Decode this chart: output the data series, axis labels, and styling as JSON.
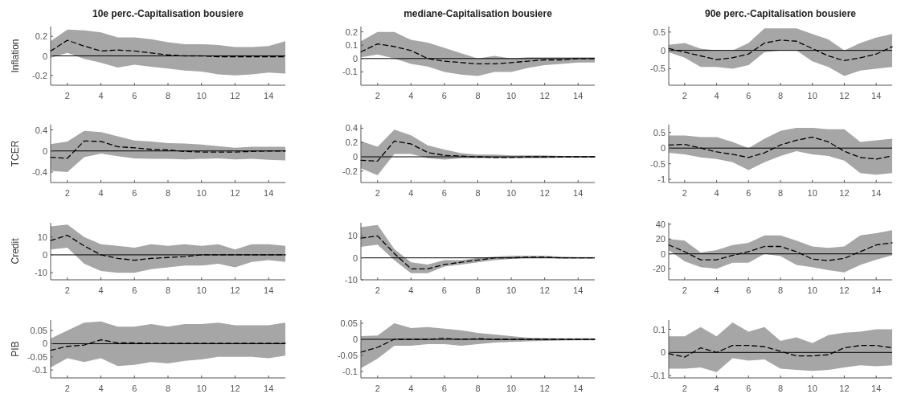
{
  "chart_data": [
    {
      "type": "line",
      "title": "10e perc.-Capitalisation bousiere",
      "ylabel": "Inflation",
      "x": [
        1,
        2,
        3,
        4,
        5,
        6,
        7,
        8,
        9,
        10,
        11,
        12,
        13,
        14,
        15
      ],
      "xlim": [
        1,
        15
      ],
      "xticks": [
        2,
        4,
        6,
        8,
        10,
        12,
        14
      ],
      "ylim": [
        -0.3,
        0.3
      ],
      "yticks": [
        -0.2,
        0,
        0.2
      ],
      "line_style": "dashed",
      "ref_lines": [
        {
          "axis": "y",
          "value": 0,
          "color": "#000000"
        }
      ],
      "series": [
        {
          "color": "#000000",
          "values": [
            0.05,
            0.16,
            0.1,
            0.05,
            0.06,
            0.05,
            0.03,
            0.01,
            0.0,
            0.0,
            -0.01,
            -0.01,
            -0.01,
            -0.01,
            -0.01
          ],
          "lower": [
            -0.02,
            0.03,
            -0.03,
            -0.07,
            -0.12,
            -0.09,
            -0.11,
            -0.13,
            -0.15,
            -0.16,
            -0.19,
            -0.2,
            -0.19,
            -0.17,
            -0.18
          ],
          "upper": [
            0.15,
            0.27,
            0.26,
            0.24,
            0.19,
            0.19,
            0.17,
            0.14,
            0.12,
            0.12,
            0.11,
            0.09,
            0.09,
            0.1,
            0.15
          ]
        }
      ]
    },
    {
      "type": "line",
      "title": "mediane-Capitalisation bousiere",
      "x": [
        1,
        2,
        3,
        4,
        5,
        6,
        7,
        8,
        9,
        10,
        11,
        12,
        13,
        14,
        15
      ],
      "xlim": [
        1,
        15
      ],
      "xticks": [
        2,
        4,
        6,
        8,
        10,
        12,
        14
      ],
      "ylim": [
        -0.2,
        0.24
      ],
      "yticks": [
        -0.1,
        0,
        0.1,
        0.2
      ],
      "line_style": "dashed",
      "ref_lines": [
        {
          "axis": "y",
          "value": 0,
          "color": "#000000"
        }
      ],
      "series": [
        {
          "color": "#000000",
          "values": [
            0.05,
            0.11,
            0.09,
            0.06,
            0.0,
            -0.02,
            -0.03,
            -0.04,
            -0.04,
            -0.03,
            -0.02,
            -0.01,
            -0.01,
            0,
            0
          ],
          "lower": [
            0.01,
            0.03,
            0.0,
            -0.04,
            -0.06,
            -0.1,
            -0.12,
            -0.13,
            -0.1,
            -0.1,
            -0.07,
            -0.05,
            -0.04,
            -0.03,
            -0.03
          ],
          "upper": [
            0.13,
            0.2,
            0.2,
            0.14,
            0.12,
            0.08,
            0.04,
            0.0,
            0.02,
            0.0,
            0.01,
            0.01,
            0.01,
            0.01,
            0.01
          ]
        }
      ]
    },
    {
      "type": "line",
      "title": "90e perc.-Capitalisation bousiere",
      "x": [
        1,
        2,
        3,
        4,
        5,
        6,
        7,
        8,
        9,
        10,
        11,
        12,
        13,
        14,
        15
      ],
      "xlim": [
        1,
        15
      ],
      "xticks": [
        2,
        4,
        6,
        8,
        10,
        12,
        14
      ],
      "ylim": [
        -0.95,
        0.65
      ],
      "yticks": [
        -0.5,
        0,
        0.5
      ],
      "line_style": "dashed",
      "ref_lines": [
        {
          "axis": "y",
          "value": 0,
          "color": "#000000"
        }
      ],
      "series": [
        {
          "color": "#000000",
          "values": [
            0.05,
            -0.05,
            -0.15,
            -0.25,
            -0.2,
            -0.1,
            0.2,
            0.28,
            0.25,
            0.05,
            -0.15,
            -0.28,
            -0.2,
            -0.1,
            0.1
          ],
          "lower": [
            -0.05,
            -0.2,
            -0.45,
            -0.45,
            -0.5,
            -0.4,
            -0.05,
            0,
            0,
            -0.3,
            -0.45,
            -0.7,
            -0.55,
            -0.5,
            -0.45
          ],
          "upper": [
            0.15,
            0.2,
            0.05,
            0,
            0,
            0.2,
            0.6,
            0.6,
            0.6,
            0.45,
            0.3,
            0,
            0.2,
            0.35,
            0.45
          ]
        }
      ]
    },
    {
      "type": "line",
      "ylabel": "TCER",
      "x": [
        1,
        2,
        3,
        4,
        5,
        6,
        7,
        8,
        9,
        10,
        11,
        12,
        13,
        14,
        15
      ],
      "xlim": [
        1,
        15
      ],
      "xticks": [
        2,
        4,
        6,
        8,
        10,
        12,
        14
      ],
      "ylim": [
        -0.6,
        0.5
      ],
      "yticks": [
        -0.4,
        0,
        0.4
      ],
      "line_style": "dashed",
      "ref_lines": [
        {
          "axis": "y",
          "value": 0,
          "color": "#000000"
        }
      ],
      "series": [
        {
          "color": "#000000",
          "values": [
            -0.12,
            -0.14,
            0.19,
            0.18,
            0.08,
            0.06,
            0.03,
            0.02,
            -0.01,
            -0.02,
            -0.02,
            -0.02,
            -0.01,
            0,
            0
          ],
          "lower": [
            -0.38,
            -0.4,
            -0.12,
            -0.05,
            -0.1,
            -0.14,
            -0.15,
            -0.15,
            -0.16,
            -0.15,
            -0.14,
            -0.16,
            -0.15,
            -0.17,
            -0.18
          ],
          "upper": [
            0.13,
            0.18,
            0.38,
            0.36,
            0.28,
            0.2,
            0.18,
            0.15,
            0.14,
            0.12,
            0.09,
            0.06,
            0.08,
            0.08,
            0.08
          ]
        }
      ]
    },
    {
      "type": "line",
      "x": [
        1,
        2,
        3,
        4,
        5,
        6,
        7,
        8,
        9,
        10,
        11,
        12,
        13,
        14,
        15
      ],
      "xlim": [
        1,
        15
      ],
      "xticks": [
        2,
        4,
        6,
        8,
        10,
        12,
        14
      ],
      "ylim": [
        -0.36,
        0.45
      ],
      "yticks": [
        -0.2,
        0,
        0.2,
        0.4
      ],
      "line_style": "dashed",
      "ref_lines": [
        {
          "axis": "y",
          "value": 0,
          "color": "#000000"
        }
      ],
      "series": [
        {
          "color": "#000000",
          "values": [
            -0.05,
            -0.06,
            0.22,
            0.18,
            0.06,
            0.02,
            0.01,
            0,
            -0.01,
            -0.01,
            0,
            0,
            0,
            0,
            0
          ],
          "lower": [
            -0.16,
            -0.26,
            0.04,
            0.04,
            -0.02,
            -0.04,
            -0.02,
            -0.02,
            -0.02,
            -0.02,
            -0.02,
            -0.02,
            -0.01,
            -0.01,
            -0.01
          ],
          "upper": [
            0.22,
            0.14,
            0.38,
            0.3,
            0.16,
            0.1,
            0.05,
            0.03,
            0.03,
            0.02,
            0.02,
            0.02,
            0.01,
            0.01,
            0.01
          ]
        }
      ]
    },
    {
      "type": "line",
      "x": [
        1,
        2,
        3,
        4,
        5,
        6,
        7,
        8,
        9,
        10,
        11,
        12,
        13,
        14,
        15
      ],
      "xlim": [
        1,
        15
      ],
      "xticks": [
        2,
        4,
        6,
        8,
        10,
        12,
        14
      ],
      "ylim": [
        -1.1,
        0.75
      ],
      "yticks": [
        -1,
        -0.5,
        0,
        0.5
      ],
      "line_style": "dashed",
      "ref_lines": [
        {
          "axis": "y",
          "value": 0,
          "color": "#000000"
        }
      ],
      "series": [
        {
          "color": "#000000",
          "values": [
            0.1,
            0.12,
            0,
            -0.12,
            -0.2,
            -0.3,
            -0.15,
            0.1,
            0.25,
            0.35,
            0.2,
            -0.1,
            -0.3,
            -0.35,
            -0.25
          ],
          "lower": [
            -0.15,
            -0.2,
            -0.3,
            -0.35,
            -0.45,
            -0.7,
            -0.45,
            -0.25,
            -0.1,
            -0.2,
            -0.25,
            -0.4,
            -0.8,
            -0.85,
            -0.8
          ],
          "upper": [
            0.4,
            0.4,
            0.35,
            0.35,
            0.2,
            0,
            0.3,
            0.55,
            0.65,
            0.65,
            0.6,
            0.6,
            0.2,
            0.25,
            0.3
          ]
        }
      ]
    },
    {
      "type": "line",
      "ylabel": "Credit",
      "x": [
        1,
        2,
        3,
        4,
        5,
        6,
        7,
        8,
        9,
        10,
        11,
        12,
        13,
        14,
        15
      ],
      "xlim": [
        1,
        15
      ],
      "xticks": [
        2,
        4,
        6,
        8,
        10,
        12,
        14
      ],
      "ylim": [
        -14,
        18
      ],
      "yticks": [
        -10,
        0,
        10
      ],
      "line_style": "dashed",
      "ref_lines": [
        {
          "axis": "y",
          "value": 0,
          "color": "#000000"
        }
      ],
      "series": [
        {
          "color": "#000000",
          "values": [
            8,
            11,
            5,
            0,
            -2,
            -3,
            -2,
            -1.5,
            -1,
            0,
            0,
            0,
            0,
            0,
            0
          ],
          "lower": [
            3,
            4,
            -5,
            -9,
            -10,
            -10,
            -8,
            -7,
            -6,
            -6,
            -5,
            -7,
            -4,
            -3,
            -4
          ],
          "upper": [
            16,
            17,
            10,
            6,
            5,
            4,
            6,
            5,
            6,
            5,
            6,
            3,
            6,
            6,
            5
          ]
        }
      ]
    },
    {
      "type": "line",
      "x": [
        1,
        2,
        3,
        4,
        5,
        6,
        7,
        8,
        9,
        10,
        11,
        12,
        13,
        14,
        15
      ],
      "xlim": [
        1,
        15
      ],
      "xticks": [
        2,
        4,
        6,
        8,
        10,
        12,
        14
      ],
      "ylim": [
        -10,
        16
      ],
      "yticks": [
        -10,
        0,
        10
      ],
      "line_style": "dashed",
      "ref_lines": [
        {
          "axis": "y",
          "value": 0,
          "color": "#000000"
        }
      ],
      "series": [
        {
          "color": "#000000",
          "values": [
            9,
            10,
            2,
            -5,
            -5,
            -3,
            -2,
            -1,
            0,
            0,
            0.3,
            0.3,
            0,
            0,
            0
          ],
          "lower": [
            5,
            6,
            -1,
            -7,
            -7,
            -4,
            -3,
            -2,
            -1,
            -0.5,
            0,
            0,
            -0.3,
            -0.3,
            -0.3
          ],
          "upper": [
            14,
            15,
            4,
            -2,
            -3,
            -1,
            -1,
            0,
            0.5,
            1,
            1,
            1,
            0.5,
            0.3,
            0.3
          ]
        }
      ]
    },
    {
      "type": "line",
      "x": [
        1,
        2,
        3,
        4,
        5,
        6,
        7,
        8,
        9,
        10,
        11,
        12,
        13,
        14,
        15
      ],
      "xlim": [
        1,
        15
      ],
      "xticks": [
        2,
        4,
        6,
        8,
        10,
        12,
        14
      ],
      "ylim": [
        -35,
        42
      ],
      "yticks": [
        -20,
        0,
        20,
        40
      ],
      "line_style": "dashed",
      "ref_lines": [
        {
          "axis": "y",
          "value": 0,
          "color": "#000000"
        }
      ],
      "series": [
        {
          "color": "#000000",
          "values": [
            12,
            3,
            -8,
            -8,
            -2,
            3,
            10,
            10,
            3,
            -7,
            -9,
            -6,
            3,
            12,
            15
          ],
          "lower": [
            5,
            -10,
            -18,
            -20,
            -12,
            -12,
            0,
            -3,
            -15,
            -18,
            -22,
            -25,
            -15,
            -8,
            -2
          ],
          "upper": [
            20,
            18,
            2,
            5,
            12,
            15,
            25,
            25,
            18,
            10,
            8,
            10,
            25,
            28,
            32
          ]
        }
      ]
    },
    {
      "type": "line",
      "ylabel": "PIB",
      "x": [
        1,
        2,
        3,
        4,
        5,
        6,
        7,
        8,
        9,
        10,
        11,
        12,
        13,
        14,
        15
      ],
      "xlim": [
        1,
        15
      ],
      "xticks": [
        2,
        4,
        6,
        8,
        10,
        12,
        14
      ],
      "ylim": [
        -0.13,
        0.09
      ],
      "yticks": [
        -0.1,
        -0.05,
        0,
        0.05
      ],
      "line_style": "dashed",
      "ref_lines": [
        {
          "axis": "y",
          "value": 0,
          "color": "#000000"
        }
      ],
      "series": [
        {
          "color": "#000000",
          "values": [
            -0.025,
            -0.01,
            -0.005,
            0.015,
            0.003,
            0.003,
            0.002,
            0.002,
            0.002,
            0.002,
            0.002,
            0.002,
            0.002,
            0.002,
            0.002
          ],
          "lower": [
            -0.09,
            -0.055,
            -0.07,
            -0.055,
            -0.085,
            -0.08,
            -0.07,
            -0.075,
            -0.065,
            -0.06,
            -0.05,
            -0.05,
            -0.05,
            -0.055,
            -0.045
          ],
          "upper": [
            0.02,
            0.05,
            0.08,
            0.085,
            0.065,
            0.065,
            0.075,
            0.065,
            0.075,
            0.075,
            0.08,
            0.07,
            0.07,
            0.07,
            0.08
          ]
        }
      ]
    },
    {
      "type": "line",
      "x": [
        1,
        2,
        3,
        4,
        5,
        6,
        7,
        8,
        9,
        10,
        11,
        12,
        13,
        14,
        15
      ],
      "xlim": [
        1,
        15
      ],
      "xticks": [
        2,
        4,
        6,
        8,
        10,
        12,
        14
      ],
      "ylim": [
        -0.12,
        0.06
      ],
      "yticks": [
        -0.1,
        -0.05,
        0,
        0.05
      ],
      "line_style": "dashed",
      "ref_lines": [
        {
          "axis": "y",
          "value": 0,
          "color": "#000000"
        }
      ],
      "series": [
        {
          "color": "#000000",
          "values": [
            -0.04,
            -0.025,
            0,
            0,
            0,
            0.003,
            0,
            0.002,
            0,
            0,
            0,
            0,
            0,
            0,
            0
          ],
          "lower": [
            -0.09,
            -0.06,
            -0.02,
            -0.02,
            -0.015,
            -0.015,
            -0.02,
            -0.015,
            -0.01,
            -0.008,
            -0.006,
            -0.005,
            -0.004,
            -0.003,
            -0.003
          ],
          "upper": [
            0.01,
            0.012,
            0.05,
            0.035,
            0.038,
            0.033,
            0.028,
            0.02,
            0.015,
            0.01,
            0.005,
            0.004,
            0.003,
            0.003,
            0.003
          ]
        }
      ]
    },
    {
      "type": "line",
      "x": [
        1,
        2,
        3,
        4,
        5,
        6,
        7,
        8,
        9,
        10,
        11,
        12,
        13,
        14,
        15
      ],
      "xlim": [
        1,
        15
      ],
      "xticks": [
        2,
        4,
        6,
        8,
        10,
        12,
        14
      ],
      "ylim": [
        -0.11,
        0.14
      ],
      "yticks": [
        -0.1,
        0,
        0.1
      ],
      "line_style": "dashed",
      "ref_lines": [
        {
          "axis": "y",
          "value": 0,
          "color": "#000000"
        }
      ],
      "series": [
        {
          "color": "#000000",
          "values": [
            -0.005,
            -0.02,
            0.02,
            0,
            0.03,
            0.03,
            0.025,
            0.005,
            -0.015,
            -0.015,
            -0.01,
            0.02,
            0.03,
            0.03,
            0.02
          ],
          "lower": [
            -0.07,
            -0.07,
            -0.065,
            -0.085,
            -0.025,
            -0.035,
            -0.03,
            -0.07,
            -0.075,
            -0.08,
            -0.075,
            -0.065,
            -0.055,
            -0.06,
            -0.055
          ],
          "upper": [
            0.07,
            0.07,
            0.11,
            0.07,
            0.13,
            0.09,
            0.11,
            0.05,
            0.065,
            0.04,
            0.075,
            0.085,
            0.09,
            0.1,
            0.1
          ]
        }
      ]
    }
  ]
}
